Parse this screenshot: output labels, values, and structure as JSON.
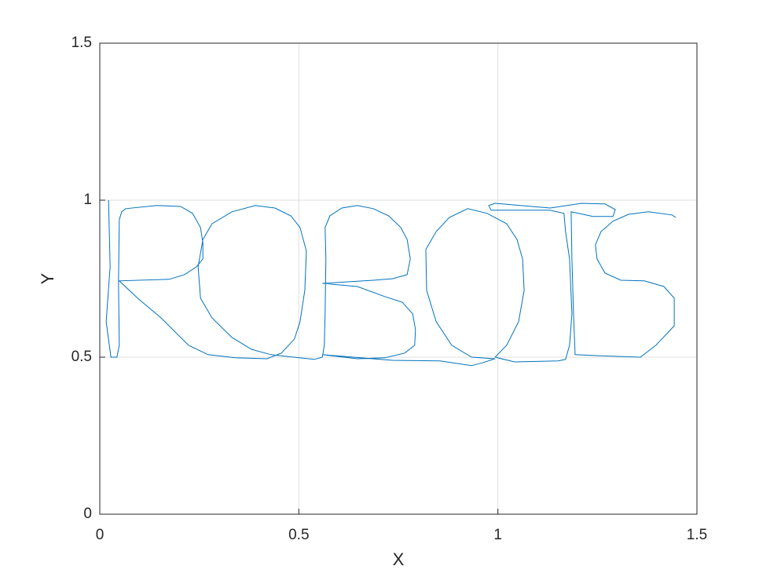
{
  "chart_data": {
    "type": "line",
    "xlabel": "X",
    "ylabel": "Y",
    "color": "#0072bd",
    "grid": true,
    "xlim": [
      0,
      1.5
    ],
    "ylim": [
      0,
      1.5
    ],
    "xticks": [
      0,
      0.5,
      1,
      1.5
    ],
    "yticks": [
      0,
      0.5,
      1,
      1.5
    ],
    "x": [
      0.022,
      0.026,
      0.016,
      0.028,
      0.043,
      0.049,
      0.047,
      0.049,
      0.055,
      0.065,
      0.144,
      0.203,
      0.233,
      0.253,
      0.259,
      0.259,
      0.243,
      0.213,
      0.174,
      0.049,
      0.095,
      0.154,
      0.223,
      0.272,
      0.341,
      0.42,
      0.456,
      0.489,
      0.503,
      0.515,
      0.519,
      0.503,
      0.48,
      0.44,
      0.391,
      0.332,
      0.282,
      0.259,
      0.247,
      0.253,
      0.282,
      0.332,
      0.381,
      0.43,
      0.539,
      0.559,
      0.564,
      0.566,
      0.568,
      0.566,
      0.578,
      0.608,
      0.647,
      0.687,
      0.726,
      0.756,
      0.772,
      0.78,
      0.772,
      0.736,
      0.687,
      0.559,
      0.647,
      0.716,
      0.76,
      0.786,
      0.793,
      0.791,
      0.766,
      0.716,
      0.647,
      0.559,
      0.637,
      0.736,
      0.855,
      0.934,
      0.963,
      0.993,
      0.934,
      0.884,
      0.845,
      0.821,
      0.819,
      0.845,
      0.878,
      0.924,
      0.973,
      1.022,
      1.048,
      1.062,
      1.066,
      1.052,
      1.022,
      0.993,
      1.042,
      1.151,
      1.17,
      1.18,
      1.186,
      1.18,
      1.17,
      1.166,
      1.131,
      1.032,
      0.983,
      0.977,
      0.993,
      1.131,
      1.21,
      1.269,
      1.295,
      1.289,
      1.239,
      1.184,
      1.186,
      1.19,
      1.194,
      1.249,
      1.358,
      1.397,
      1.443,
      1.443,
      1.417,
      1.368,
      1.309,
      1.269,
      1.249,
      1.245,
      1.259,
      1.289,
      1.328,
      1.378,
      1.437,
      1.447
    ],
    "values": [
      1.0,
      0.788,
      0.613,
      0.5,
      0.5,
      0.538,
      0.738,
      0.938,
      0.963,
      0.973,
      0.983,
      0.98,
      0.958,
      0.913,
      0.863,
      0.813,
      0.788,
      0.763,
      0.748,
      0.743,
      0.688,
      0.625,
      0.538,
      0.508,
      0.498,
      0.495,
      0.513,
      0.558,
      0.613,
      0.713,
      0.838,
      0.913,
      0.95,
      0.975,
      0.983,
      0.963,
      0.925,
      0.875,
      0.788,
      0.688,
      0.625,
      0.563,
      0.525,
      0.508,
      0.493,
      0.5,
      0.538,
      0.638,
      0.813,
      0.913,
      0.95,
      0.975,
      0.983,
      0.973,
      0.95,
      0.913,
      0.875,
      0.813,
      0.763,
      0.75,
      0.745,
      0.735,
      0.725,
      0.693,
      0.675,
      0.638,
      0.588,
      0.538,
      0.513,
      0.498,
      0.495,
      0.508,
      0.5,
      0.49,
      0.488,
      0.473,
      0.483,
      0.495,
      0.5,
      0.538,
      0.613,
      0.713,
      0.843,
      0.9,
      0.945,
      0.973,
      0.958,
      0.925,
      0.875,
      0.813,
      0.713,
      0.613,
      0.538,
      0.5,
      0.485,
      0.488,
      0.493,
      0.538,
      0.638,
      0.813,
      0.9,
      0.958,
      0.968,
      0.968,
      0.968,
      0.983,
      0.99,
      0.975,
      0.99,
      0.988,
      0.97,
      0.948,
      0.948,
      0.963,
      0.813,
      0.638,
      0.508,
      0.505,
      0.5,
      0.538,
      0.6,
      0.688,
      0.725,
      0.743,
      0.745,
      0.768,
      0.813,
      0.858,
      0.9,
      0.933,
      0.955,
      0.963,
      0.953,
      0.945
    ]
  }
}
